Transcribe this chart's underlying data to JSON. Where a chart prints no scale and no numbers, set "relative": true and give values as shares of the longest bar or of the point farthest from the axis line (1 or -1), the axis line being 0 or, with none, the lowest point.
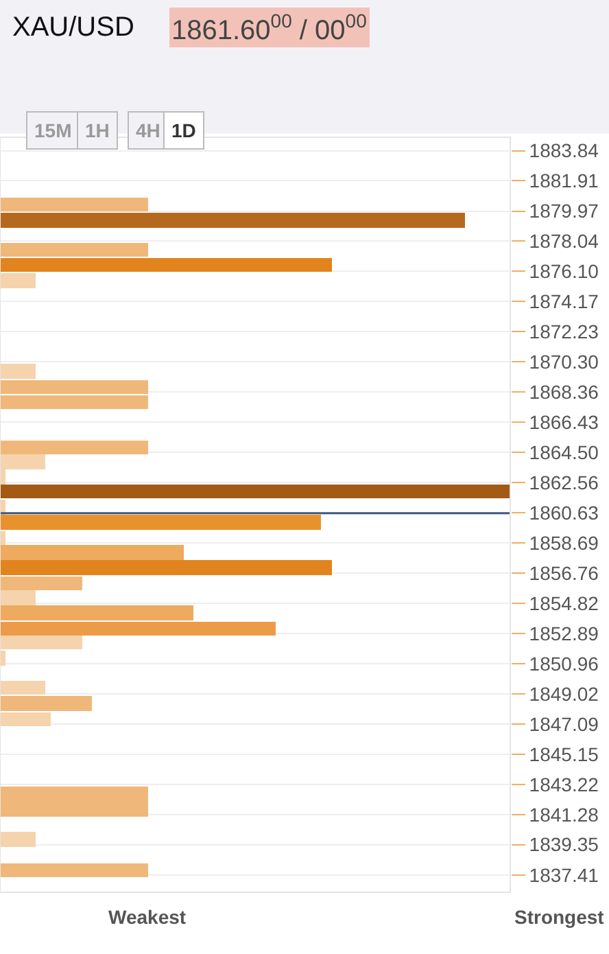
{
  "chart_data": {
    "type": "bar",
    "orientation": "horizontal",
    "relative": true,
    "title": "XAU/USD",
    "subtitle": "1861.60$^{00}$ / 00$^{00}$",
    "annotations": [
      "15M",
      "1H",
      "4H",
      "1D",
      "Weakest",
      "Strongest"
    ],
    "x": [
      1880.4,
      1879.4,
      1877.5,
      1876.5,
      1875.5,
      1869.7,
      1868.7,
      1867.7,
      1864.8,
      1863.9,
      1862.9,
      1862.0,
      1861.0,
      1860.0,
      1859.0,
      1858.1,
      1857.1,
      1856.1,
      1855.2,
      1854.2,
      1853.2,
      1852.3,
      1851.3,
      1849.4,
      1848.4,
      1847.4,
      1842.6,
      1841.6,
      1839.7,
      1837.7
    ],
    "values": [
      0.29,
      0.91,
      0.29,
      0.65,
      0.07,
      0.07,
      0.29,
      0.29,
      0.29,
      0.09,
      0.01,
      1,
      0.01,
      0.63,
      0.01,
      0.36,
      0.65,
      0.16,
      0.07,
      0.38,
      0.54,
      0.16,
      0.01,
      0.09,
      0.18,
      0.1,
      0.29,
      0.29,
      0.07,
      0.29
    ],
    "colors": [
      "#efb87a",
      "#b5691f",
      "#efb87a",
      "#e2841d",
      "#f5d3ad",
      "#f5d3ad",
      "#efb87a",
      "#efb87a",
      "#efb87a",
      "#f5d3ad",
      "#f5d3ad",
      "#a35a14",
      "#f5d3ad",
      "#e8922e",
      "#f5d3ad",
      "#eeaa5e",
      "#e2841d",
      "#efb87a",
      "#f5d3ad",
      "#eeaa5e",
      "#ec9c48",
      "#f5d3ad",
      "#f5d3ad",
      "#f5d3ad",
      "#efb87a",
      "#f5d3ad",
      "#efb87a",
      "#efb87a",
      "#f5d3ad",
      "#efb87a"
    ],
    "ylim": [
      1836.3,
      1884.7
    ],
    "yticks": [
      {
        "value": 1883.84,
        "label": "1883.84"
      },
      {
        "value": 1881.91,
        "label": "1881.91"
      },
      {
        "value": 1879.97,
        "label": "1879.97"
      },
      {
        "value": 1878.04,
        "label": "1878.04"
      },
      {
        "value": 1876.1,
        "label": "1876.10"
      },
      {
        "value": 1874.17,
        "label": "1874.17"
      },
      {
        "value": 1872.23,
        "label": "1872.23"
      },
      {
        "value": 1870.3,
        "label": "1870.30"
      },
      {
        "value": 1868.36,
        "label": "1868.36"
      },
      {
        "value": 1866.43,
        "label": "1866.43"
      },
      {
        "value": 1864.5,
        "label": "1864.50"
      },
      {
        "value": 1862.56,
        "label": "1862.56"
      },
      {
        "value": 1860.63,
        "label": "1860.63"
      },
      {
        "value": 1858.69,
        "label": "1858.69"
      },
      {
        "value": 1856.76,
        "label": "1856.76"
      },
      {
        "value": 1854.82,
        "label": "1854.82"
      },
      {
        "value": 1852.89,
        "label": "1852.89"
      },
      {
        "value": 1850.96,
        "label": "1850.96"
      },
      {
        "value": 1849.02,
        "label": "1849.02"
      },
      {
        "value": 1847.09,
        "label": "1847.09"
      },
      {
        "value": 1845.15,
        "label": "1845.15"
      },
      {
        "value": 1843.22,
        "label": "1843.22"
      },
      {
        "value": 1841.28,
        "label": "1841.28"
      },
      {
        "value": 1839.35,
        "label": "1839.35"
      },
      {
        "value": 1837.41,
        "label": "1837.41"
      }
    ],
    "ref_lines": [
      {
        "axis": "y",
        "value": 1860.6,
        "color": "#3d5a80"
      }
    ],
    "grid": "y",
    "tick_labels": "y"
  }
}
